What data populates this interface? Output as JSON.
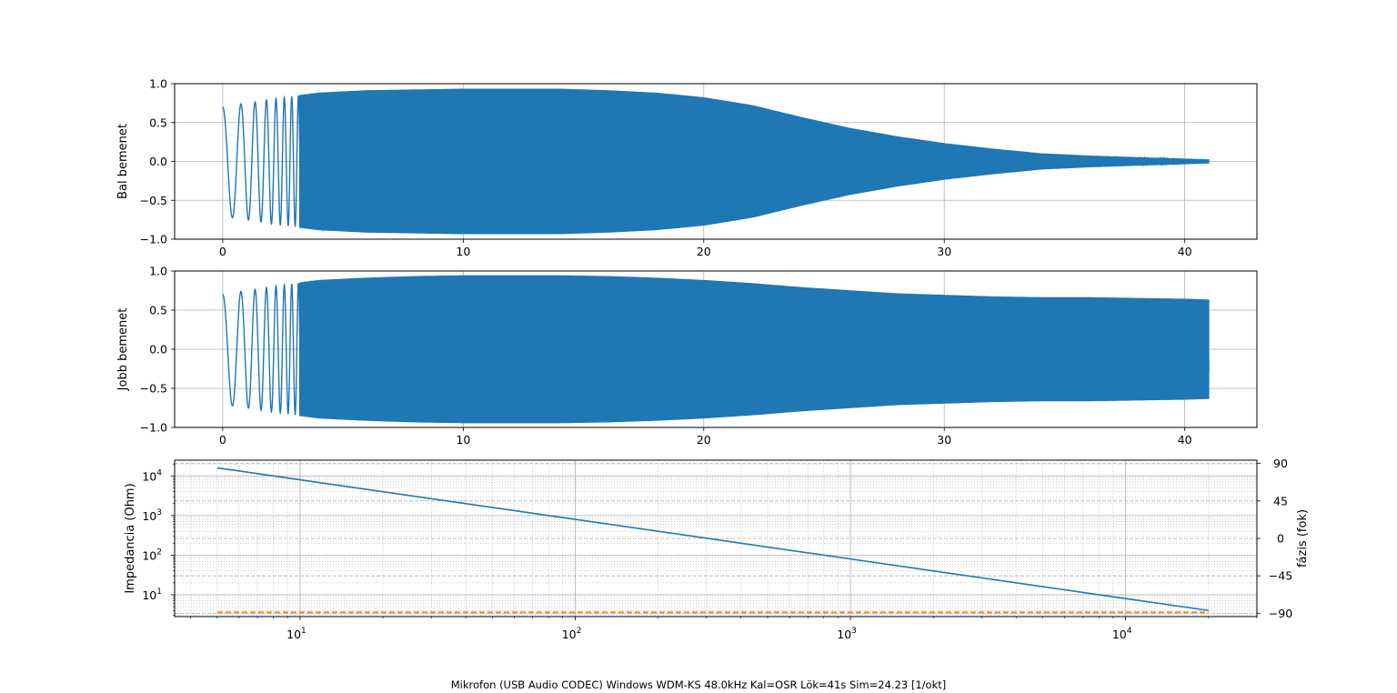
{
  "chart_data": [
    {
      "type": "line",
      "ylabel": "Bal bemenet",
      "xlim": [
        -2,
        43
      ],
      "ylim": [
        -1.0,
        1.0
      ],
      "xticks": [
        0,
        10,
        20,
        30,
        40
      ],
      "yticks": [
        -1.0,
        -0.5,
        0.0,
        0.5,
        1.0
      ],
      "grid": true,
      "color": "#1f77b4",
      "signal": "sweep waveform, filled envelope",
      "envelope": {
        "t": [
          0,
          0.5,
          1,
          2,
          3,
          4,
          6,
          8,
          10,
          14,
          16,
          18,
          20,
          22,
          24,
          26,
          28,
          30,
          32,
          34,
          36,
          38,
          40,
          41
        ],
        "amp": [
          0.7,
          0.73,
          0.75,
          0.8,
          0.84,
          0.88,
          0.91,
          0.92,
          0.93,
          0.93,
          0.91,
          0.88,
          0.82,
          0.72,
          0.57,
          0.43,
          0.32,
          0.23,
          0.16,
          0.1,
          0.07,
          0.05,
          0.03,
          0.02
        ]
      }
    },
    {
      "type": "line",
      "ylabel": "Jobb bemenet",
      "xlim": [
        -2,
        43
      ],
      "ylim": [
        -1.0,
        1.0
      ],
      "xticks": [
        0,
        10,
        20,
        30,
        40
      ],
      "yticks": [
        -1.0,
        -0.5,
        0.0,
        0.5,
        1.0
      ],
      "grid": true,
      "color": "#1f77b4",
      "signal": "sweep waveform, filled envelope",
      "envelope": {
        "t": [
          0,
          0.5,
          1,
          2,
          3,
          4,
          6,
          8,
          10,
          14,
          16,
          18,
          20,
          22,
          24,
          26,
          28,
          30,
          32,
          34,
          36,
          38,
          40,
          41
        ],
        "amp": [
          0.7,
          0.73,
          0.75,
          0.8,
          0.84,
          0.88,
          0.91,
          0.93,
          0.94,
          0.94,
          0.93,
          0.91,
          0.88,
          0.84,
          0.79,
          0.75,
          0.71,
          0.69,
          0.67,
          0.66,
          0.66,
          0.65,
          0.64,
          0.63
        ]
      }
    },
    {
      "type": "line",
      "xscale": "log",
      "yscale": "log",
      "xlim": [
        3.5,
        30000
      ],
      "ylim": [
        2.8,
        25000
      ],
      "ylabel": "Impedancia (Ohm)",
      "y2label": "fázis (fok)",
      "y2lim": [
        -94,
        94
      ],
      "y2ticks": [
        -90,
        -45,
        0,
        45,
        90
      ],
      "xtick_labels": [
        "10^1",
        "10^2",
        "10^3",
        "10^4"
      ],
      "ytick_labels": [
        "10^1",
        "10^2",
        "10^3",
        "10^4"
      ],
      "grid": "major and minor",
      "series": [
        {
          "axis": "left",
          "color": "#1f77b4",
          "style": "solid",
          "x": [
            5,
            10,
            100,
            1000,
            10000,
            20000
          ],
          "y": [
            16000,
            8000,
            800,
            80,
            8,
            4
          ]
        },
        {
          "axis": "right",
          "color": "#ff7f0e",
          "style": "dashed",
          "x": [
            5,
            20000
          ],
          "y": [
            -89,
            -89
          ]
        }
      ]
    }
  ],
  "footer": "Mikrofon (USB Audio CODEC) Windows WDM-KS 48.0kHz Kal=OSR Lök=41s Sim=24.23 [1/okt]"
}
